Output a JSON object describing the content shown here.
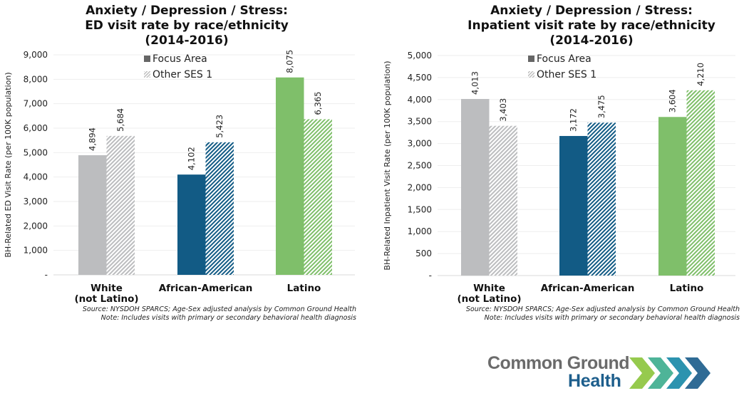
{
  "chart_data": [
    {
      "type": "bar",
      "title": [
        "Anxiety / Depression / Stress:",
        "ED visit rate by race/ethnicity",
        "(2014-2016)"
      ],
      "xlabel": "",
      "ylabel": "BH-Related ED Visit Rate (per 100K population)",
      "ylim": [
        0,
        9000
      ],
      "yticks": [
        0,
        1000,
        2000,
        3000,
        4000,
        5000,
        6000,
        7000,
        8000,
        9000
      ],
      "ytick_labels": [
        "-",
        "1,000",
        "2,000",
        "3,000",
        "4,000",
        "5,000",
        "6,000",
        "7,000",
        "8,000",
        "9,000"
      ],
      "grid": true,
      "legend_position": "top-center",
      "categories": [
        [
          "White",
          "(not Latino)"
        ],
        [
          "African-American"
        ],
        [
          "Latino"
        ]
      ],
      "category_colors": [
        "#bcbdbf",
        "#125b85",
        "#7fbf6a"
      ],
      "series": [
        {
          "name": "Focus Area",
          "pattern": "solid",
          "values": [
            4894,
            4102,
            8075
          ],
          "labels": [
            "4,894",
            "4,102",
            "8,075"
          ]
        },
        {
          "name": "Other SES 1",
          "pattern": "hatched",
          "values": [
            5684,
            5423,
            6365
          ],
          "labels": [
            "5,684",
            "5,423",
            "6,365"
          ]
        }
      ],
      "notes": [
        "Source: NYSDOH SPARCS; Age-Sex adjusted analysis by Common Ground Health",
        "Note: Includes visits with primary or secondary behavioral health diagnosis"
      ]
    },
    {
      "type": "bar",
      "title": [
        "Anxiety / Depression / Stress:",
        "Inpatient visit rate by race/ethnicity",
        "(2014-2016)"
      ],
      "xlabel": "",
      "ylabel": "BH-Related Inpatient Visit Rate (per 100K population)",
      "ylim": [
        0,
        5000
      ],
      "yticks": [
        0,
        500,
        1000,
        1500,
        2000,
        2500,
        3000,
        3500,
        4000,
        4500,
        5000
      ],
      "ytick_labels": [
        "-",
        "500",
        "1,000",
        "1,500",
        "2,000",
        "2,500",
        "3,000",
        "3,500",
        "4,000",
        "4,500",
        "5,000"
      ],
      "grid": true,
      "legend_position": "top-center",
      "categories": [
        [
          "White",
          "(not Latino)"
        ],
        [
          "African-American"
        ],
        [
          "Latino"
        ]
      ],
      "category_colors": [
        "#bcbdbf",
        "#125b85",
        "#7fbf6a"
      ],
      "series": [
        {
          "name": "Focus Area",
          "pattern": "solid",
          "values": [
            4013,
            3172,
            3604
          ],
          "labels": [
            "4,013",
            "3,172",
            "3,604"
          ]
        },
        {
          "name": "Other SES 1",
          "pattern": "hatched",
          "values": [
            3403,
            3475,
            4210
          ],
          "labels": [
            "3,403",
            "3,475",
            "4,210"
          ]
        }
      ],
      "notes": [
        "Source: NYSDOH SPARCS; Age-Sex adjusted analysis by Common Ground Health",
        "Note: Includes visits with primary or secondary behavioral health diagnosis"
      ]
    }
  ],
  "legend": {
    "focus_label": "Focus Area",
    "other_label": "Other SES 1",
    "focus_swatch_color": "#666666",
    "other_swatch_color": "#bbbbbb"
  },
  "logo": {
    "line1": "Common Ground",
    "line2": "Health",
    "chevron_colors": [
      "#8dc63f",
      "#3fae8f",
      "#1a8aa8",
      "#1d5e8c"
    ],
    "icon": "chevrons-icon"
  }
}
